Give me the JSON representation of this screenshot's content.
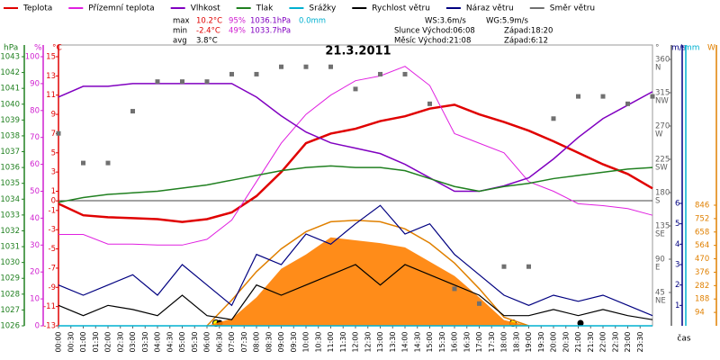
{
  "chart_data": {
    "type": "line",
    "title": "21.3.2011",
    "x_label": "čas",
    "legend": true,
    "x": [
      0,
      1,
      2,
      3,
      4,
      5,
      6,
      7,
      8,
      9,
      10,
      11,
      12,
      13,
      14,
      15,
      16,
      17,
      18,
      19,
      20,
      21,
      22,
      23,
      24
    ],
    "xlim": [
      0,
      24
    ],
    "xticks": [
      {
        "value": 0,
        "label": "00:00"
      },
      {
        "value": 0.5,
        "label": "00:30"
      },
      {
        "value": 1,
        "label": "01:00"
      },
      {
        "value": 1.5,
        "label": "01:30"
      },
      {
        "value": 2,
        "label": "02:00"
      },
      {
        "value": 2.5,
        "label": "02:30"
      },
      {
        "value": 3,
        "label": "03:00"
      },
      {
        "value": 3.5,
        "label": "03:30"
      },
      {
        "value": 4,
        "label": "04:00"
      },
      {
        "value": 4.5,
        "label": "04:30"
      },
      {
        "value": 5,
        "label": "05:00"
      },
      {
        "value": 5.5,
        "label": "05:30"
      },
      {
        "value": 6,
        "label": "06:00"
      },
      {
        "value": 6.5,
        "label": "06:30"
      },
      {
        "value": 7,
        "label": "07:00"
      },
      {
        "value": 7.5,
        "label": "07:30"
      },
      {
        "value": 8,
        "label": "08:00"
      },
      {
        "value": 8.5,
        "label": "08:30"
      },
      {
        "value": 9,
        "label": "09:00"
      },
      {
        "value": 9.5,
        "label": "09:30"
      },
      {
        "value": 10,
        "label": "10:00"
      },
      {
        "value": 10.5,
        "label": "10:30"
      },
      {
        "value": 11,
        "label": "11:00"
      },
      {
        "value": 11.5,
        "label": "11:30"
      },
      {
        "value": 12,
        "label": "12:00"
      },
      {
        "value": 12.5,
        "label": "12:30"
      },
      {
        "value": 13,
        "label": "13:00"
      },
      {
        "value": 13.5,
        "label": "13:30"
      },
      {
        "value": 14,
        "label": "14:00"
      },
      {
        "value": 14.5,
        "label": "14:30"
      },
      {
        "value": 15,
        "label": "15:00"
      },
      {
        "value": 15.5,
        "label": "15:30"
      },
      {
        "value": 16,
        "label": "16:00"
      },
      {
        "value": 16.5,
        "label": "16:30"
      },
      {
        "value": 17,
        "label": "17:00"
      },
      {
        "value": 17.5,
        "label": "17:30"
      },
      {
        "value": 18,
        "label": "18:00"
      },
      {
        "value": 18.5,
        "label": "18:30"
      },
      {
        "value": 19,
        "label": "19:00"
      },
      {
        "value": 19.5,
        "label": "19:30"
      },
      {
        "value": 20,
        "label": "20:00"
      },
      {
        "value": 20.5,
        "label": "20:30"
      },
      {
        "value": 21,
        "label": "21:00"
      },
      {
        "value": 21.5,
        "label": "21:30"
      },
      {
        "value": 22,
        "label": "22:00"
      },
      {
        "value": 22.5,
        "label": "22:30"
      },
      {
        "value": 23,
        "label": "23:00"
      },
      {
        "value": 23.5,
        "label": "23:30"
      }
    ],
    "axes": {
      "y3": {
        "unit": "hPa",
        "color": "#208020",
        "lim": [
          1026,
          1043
        ],
        "ticks": [
          1043,
          1042,
          1041,
          1040,
          1039,
          1038,
          1037,
          1036,
          1035,
          1034,
          1033,
          1032,
          1031,
          1030,
          1029,
          1028,
          1027,
          1026
        ]
      },
      "y2": {
        "unit": "%",
        "color": "#d020d0",
        "lim": [
          0,
          100
        ],
        "ticks": [
          100,
          90,
          80,
          70,
          60,
          50,
          40,
          30,
          20,
          10,
          0
        ]
      },
      "y": {
        "unit": "°C",
        "color": "#e00000",
        "lim": [
          -13,
          15
        ],
        "ticks": [
          15,
          13,
          11,
          9,
          7,
          5,
          3,
          1,
          0,
          -1,
          -3,
          -5,
          -7,
          -9,
          -11,
          -13
        ]
      },
      "y4": {
        "unit": "°",
        "color": "#606060",
        "lim": [
          0,
          360
        ],
        "ticks": [
          360,
          315,
          270,
          225,
          180,
          135,
          90,
          45
        ],
        "tick_names": [
          "N",
          "NW",
          "W",
          "SW",
          "S",
          "SE",
          "E",
          "NE"
        ]
      },
      "y5": {
        "unit": "m/s",
        "color": "#000080",
        "lim": [
          0,
          6
        ],
        "ticks": [
          6,
          5,
          4,
          3,
          2,
          1
        ]
      },
      "y7": {
        "unit": "mm",
        "color": "#00b0d0",
        "lim": [
          0,
          6
        ],
        "ticks": []
      },
      "y6": {
        "unit": "W",
        "color": "#e08000",
        "lim": [
          0,
          846
        ],
        "ticks": [
          846,
          752,
          658,
          564,
          470,
          376,
          282,
          188,
          94
        ]
      }
    },
    "radiation": {
      "color": "#ff8000",
      "axis": "y6",
      "values": [
        0,
        0,
        0,
        0,
        0,
        0,
        0,
        50,
        200,
        400,
        500,
        620,
        600,
        580,
        550,
        450,
        350,
        200,
        40,
        0,
        0,
        0,
        0,
        0,
        0
      ]
    },
    "radiation_clear_sky": {
      "color": "#e08000",
      "axis": "y6",
      "values": [
        null,
        null,
        null,
        null,
        null,
        null,
        0,
        180,
        380,
        540,
        660,
        730,
        740,
        730,
        680,
        580,
        440,
        260,
        60,
        0,
        null,
        null,
        null,
        null,
        null
      ]
    },
    "series": [
      {
        "name": "Teplota",
        "color": "#e00000",
        "axis": "y",
        "style": "line",
        "width": 2.5,
        "values": [
          -0.3,
          -1.5,
          -1.7,
          -1.8,
          -1.9,
          -2.2,
          -1.9,
          -1.2,
          0.5,
          3.0,
          6.0,
          7.0,
          7.5,
          8.3,
          8.8,
          9.6,
          10.0,
          9.0,
          8.2,
          7.3,
          6.2,
          5.0,
          3.8,
          2.8,
          1.3
        ]
      },
      {
        "name": "Přízemní teplota",
        "color": "#e020e0",
        "axis": "y",
        "style": "line",
        "width": 1,
        "values": [
          -3.5,
          -3.5,
          -4.5,
          -4.5,
          -4.6,
          -4.6,
          -4.0,
          -2.0,
          2.0,
          6.0,
          9.0,
          11.0,
          12.5,
          13.0,
          14.0,
          12.0,
          7.0,
          6.0,
          5.0,
          2.0,
          1.0,
          -0.3,
          -0.5,
          -0.8,
          -1.5
        ]
      },
      {
        "name": "Vlhkost",
        "color": "#8000c0",
        "axis": "y2",
        "style": "line",
        "width": 1.5,
        "values": [
          85,
          89,
          89,
          90,
          90,
          90,
          90,
          90,
          85,
          78,
          72,
          68,
          66,
          64,
          60,
          55,
          50,
          50,
          52,
          55,
          62,
          70,
          77,
          82,
          87
        ]
      },
      {
        "name": "Tlak",
        "color": "#208020",
        "axis": "y3",
        "style": "line",
        "width": 1.5,
        "values": [
          1033.8,
          1034.1,
          1034.3,
          1034.4,
          1034.5,
          1034.7,
          1034.9,
          1035.2,
          1035.5,
          1035.8,
          1036.0,
          1036.1,
          1036.0,
          1036.0,
          1035.8,
          1035.3,
          1034.8,
          1034.5,
          1034.8,
          1035.0,
          1035.3,
          1035.5,
          1035.7,
          1035.9,
          1036.0
        ]
      },
      {
        "name": "Srážky",
        "color": "#00b0d0",
        "axis": "y7",
        "style": "line",
        "width": 1.5,
        "values": [
          0,
          0,
          0,
          0,
          0,
          0,
          0,
          0,
          0,
          0,
          0,
          0,
          0,
          0,
          0,
          0,
          0,
          0,
          0,
          0,
          0,
          0,
          0,
          0,
          0
        ]
      },
      {
        "name": "Rychlost větru",
        "color": "#000000",
        "axis": "y5",
        "style": "line",
        "width": 1.2,
        "values": [
          1,
          0.5,
          1,
          0.8,
          0.5,
          1.5,
          0.5,
          0.3,
          2,
          1.5,
          2,
          2.5,
          3,
          2,
          3,
          2.5,
          2,
          1.5,
          0.5,
          0.5,
          0.8,
          0.5,
          0.8,
          0.5,
          0.3
        ]
      },
      {
        "name": "Náraz větru",
        "color": "#000080",
        "axis": "y5",
        "style": "line",
        "width": 1.2,
        "values": [
          2,
          1.5,
          2,
          2.5,
          1.5,
          3,
          2,
          1,
          3.5,
          3,
          4.5,
          4,
          5,
          5.9,
          4.5,
          5,
          3.5,
          2.5,
          1.5,
          1,
          1.5,
          1.2,
          1.5,
          1,
          0.5
        ]
      },
      {
        "name": "Směr větru",
        "color": "#707070",
        "axis": "y4",
        "style": "points",
        "width": 1,
        "values": [
          260,
          220,
          220,
          290,
          330,
          330,
          330,
          340,
          340,
          350,
          350,
          350,
          320,
          340,
          340,
          300,
          50,
          30,
          80,
          80,
          280,
          310,
          310,
          300,
          310
        ]
      }
    ],
    "stats": [
      {
        "items": [
          "max",
          "10.2°C",
          "95%",
          "1036.1hPa",
          "0.0mm"
        ],
        "colors": [
          "#000000",
          "#e00000",
          "#d020d0",
          "#8000c0",
          "#00b0d0"
        ]
      },
      {
        "items": [
          "min",
          "-2.4°C",
          "49%",
          "1033.7hPa"
        ],
        "colors": [
          "#000000",
          "#e00000",
          "#d020d0",
          "#8000c0"
        ]
      },
      {
        "items": [
          "avg",
          "3.8°C"
        ],
        "colors": [
          "#000000",
          "#000000"
        ]
      }
    ],
    "info": [
      "WS:3.6m/s",
      "WG:5.9m/s",
      "Slunce Východ:06:08",
      "Západ:18:20",
      "Měsíc Východ:21:08",
      "Západ:6:12"
    ]
  }
}
